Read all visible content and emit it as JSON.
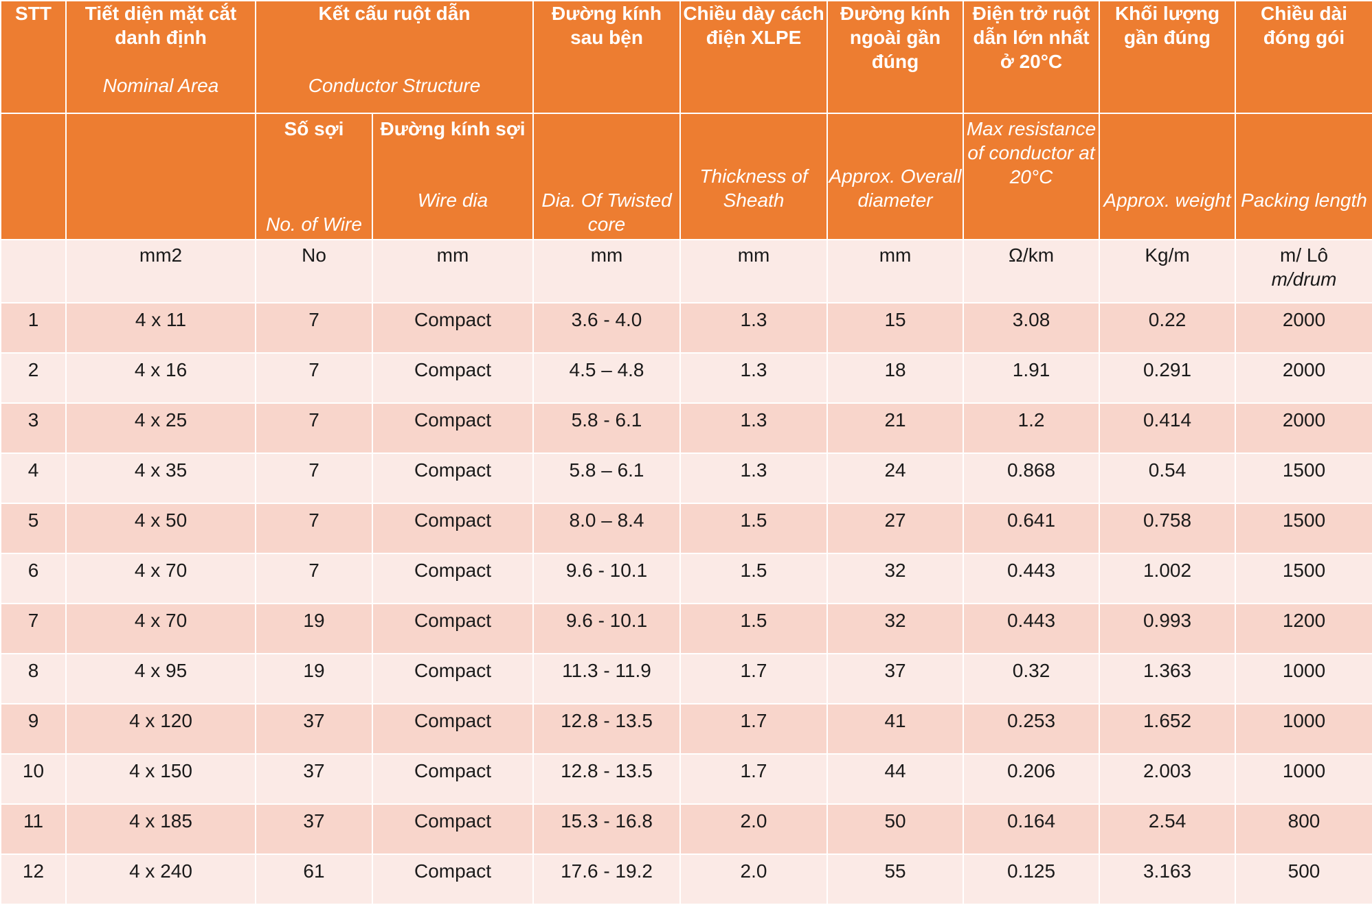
{
  "header": {
    "stt": "STT",
    "nominal_area": {
      "vi": "Tiết diện mặt cắt danh định",
      "en": "Nominal Area"
    },
    "conductor_structure": {
      "vi": "Kết cấu ruột dẫn",
      "en": "Conductor Structure"
    },
    "twisted_dia": {
      "vi": "Đường kính sau bện",
      "en": "Dia. Of Twisted core"
    },
    "xlpe_thickness": {
      "vi": "Chiều dày cách điện XLPE",
      "en": "Thickness of Sheath"
    },
    "overall_dia": {
      "vi": "Đường kính ngoài gần đúng",
      "en": "Approx. Overall diameter"
    },
    "max_resistance": {
      "vi": "Điện trở ruột dẫn lớn nhất ở 20°C",
      "en": "Max resistance of conductor at 20°C"
    },
    "weight": {
      "vi": "Khối lượng gần đúng",
      "en": "Approx. weight"
    },
    "packing_length": {
      "vi": "Chiều dài đóng gói",
      "en": "Packing length"
    },
    "no_of_wire": {
      "vi": "Số sợi",
      "en": "No. of Wire"
    },
    "wire_dia": {
      "vi": "Đường kính sợi",
      "en": "Wire dia"
    }
  },
  "units": {
    "stt": "",
    "nominal_area": "mm2",
    "no_of_wire": "No",
    "wire_dia": "mm",
    "twisted_dia": "mm",
    "xlpe_thickness": "mm",
    "overall_dia": "mm",
    "max_resistance": "Ω/km",
    "weight": "Kg/m",
    "packing_length": "m/ Lô",
    "packing_length_en": "m/drum"
  },
  "rows": [
    [
      "1",
      "4 x 11",
      "7",
      "Compact",
      "3.6 - 4.0",
      "1.3",
      "15",
      "3.08",
      "0.22",
      "2000"
    ],
    [
      "2",
      "4 x 16",
      "7",
      "Compact",
      "4.5 – 4.8",
      "1.3",
      "18",
      "1.91",
      "0.291",
      "2000"
    ],
    [
      "3",
      "4 x 25",
      "7",
      "Compact",
      "5.8 - 6.1",
      "1.3",
      "21",
      "1.2",
      "0.414",
      "2000"
    ],
    [
      "4",
      "4 x 35",
      "7",
      "Compact",
      "5.8 – 6.1",
      "1.3",
      "24",
      "0.868",
      "0.54",
      "1500"
    ],
    [
      "5",
      "4 x 50",
      "7",
      "Compact",
      "8.0 – 8.4",
      "1.5",
      "27",
      "0.641",
      "0.758",
      "1500"
    ],
    [
      "6",
      "4 x 70",
      "7",
      "Compact",
      "9.6 - 10.1",
      "1.5",
      "32",
      "0.443",
      "1.002",
      "1500"
    ],
    [
      "7",
      "4 x 70",
      "19",
      "Compact",
      "9.6 - 10.1",
      "1.5",
      "32",
      "0.443",
      "0.993",
      "1200"
    ],
    [
      "8",
      "4 x 95",
      "19",
      "Compact",
      "11.3 - 11.9",
      "1.7",
      "37",
      "0.32",
      "1.363",
      "1000"
    ],
    [
      "9",
      "4 x 120",
      "37",
      "Compact",
      "12.8 - 13.5",
      "1.7",
      "41",
      "0.253",
      "1.652",
      "1000"
    ],
    [
      "10",
      "4 x 150",
      "37",
      "Compact",
      "12.8 - 13.5",
      "1.7",
      "44",
      "0.206",
      "2.003",
      "1000"
    ],
    [
      "11",
      "4 x 185",
      "37",
      "Compact",
      "15.3 - 16.8",
      "2.0",
      "50",
      "0.164",
      "2.54",
      "800"
    ],
    [
      "12",
      "4 x 240",
      "61",
      "Compact",
      "17.6 - 19.2",
      "2.0",
      "55",
      "0.125",
      "3.163",
      "500"
    ]
  ],
  "colors": {
    "header_bg": "#ED7D31",
    "header_text": "#FFFFFF",
    "row_dark": "#F8D5CB",
    "row_light": "#FBEAE6",
    "border": "#FFFFFF"
  }
}
